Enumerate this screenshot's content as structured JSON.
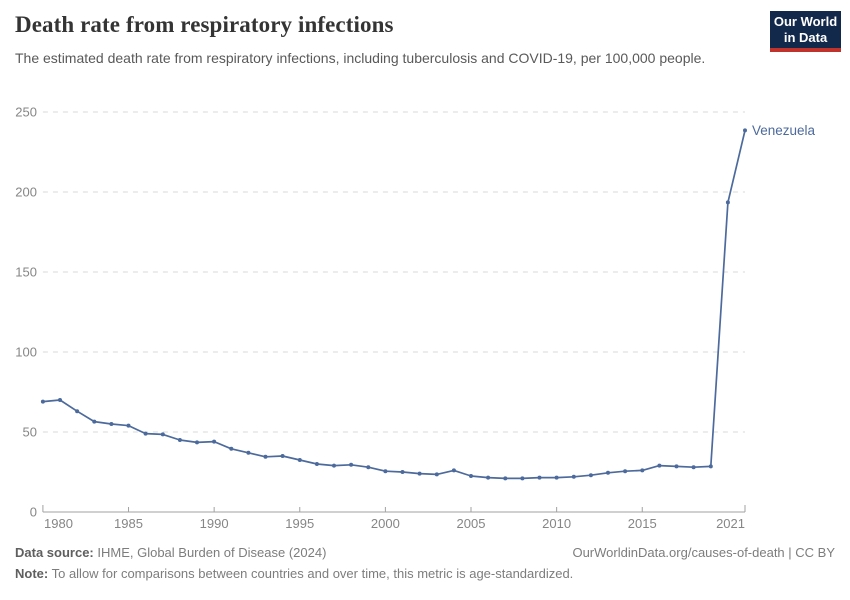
{
  "header": {
    "title": "Death rate from respiratory infections",
    "subtitle": "The estimated death rate from respiratory infections, including tuberculosis and COVID-19, per 100,000 people.",
    "logo": {
      "line1": "Our World",
      "line2": "in Data"
    }
  },
  "chart_data": {
    "type": "line",
    "title": "Death rate from respiratory infections",
    "xlabel": "",
    "ylabel": "",
    "ylim": [
      0,
      250
    ],
    "grid": true,
    "legend_position": "end-of-line",
    "y_ticks": [
      0,
      50,
      100,
      150,
      200,
      250
    ],
    "x_tick_labels": [
      "1980",
      "1985",
      "1990",
      "1995",
      "2000",
      "2005",
      "2010",
      "2015",
      "2021"
    ],
    "x": [
      1980,
      1981,
      1982,
      1983,
      1984,
      1985,
      1986,
      1987,
      1988,
      1989,
      1990,
      1991,
      1992,
      1993,
      1994,
      1995,
      1996,
      1997,
      1998,
      1999,
      2000,
      2001,
      2002,
      2003,
      2004,
      2005,
      2006,
      2007,
      2008,
      2009,
      2010,
      2011,
      2012,
      2013,
      2014,
      2015,
      2016,
      2017,
      2018,
      2019,
      2020,
      2021
    ],
    "series": [
      {
        "name": "Venezuela",
        "color": "#4c6a9c",
        "values": [
          69,
          70,
          63,
          56.5,
          55,
          54,
          49,
          48.5,
          45,
          43.5,
          44,
          39.5,
          37,
          34.5,
          35,
          32.5,
          30,
          29,
          29.5,
          28,
          25.5,
          25,
          24,
          23.5,
          26,
          22.5,
          21.5,
          21,
          21,
          21.5,
          21.5,
          22,
          23,
          24.5,
          25.5,
          26,
          29,
          28.5,
          28,
          28.5,
          193.5,
          238.5
        ]
      }
    ]
  },
  "axis_style": {
    "tick_label_color": "#868686",
    "gridline_color": "#dadada",
    "axis_line_color": "#a1a1a1"
  },
  "footer": {
    "data_source_label": "Data source:",
    "data_source_text": " IHME, Global Burden of Disease (2024)",
    "attribution": "OurWorldinData.org/causes-of-death | CC BY",
    "note_label": "Note:",
    "note_text": " To allow for comparisons between countries and over time, this metric is age-standardized."
  }
}
